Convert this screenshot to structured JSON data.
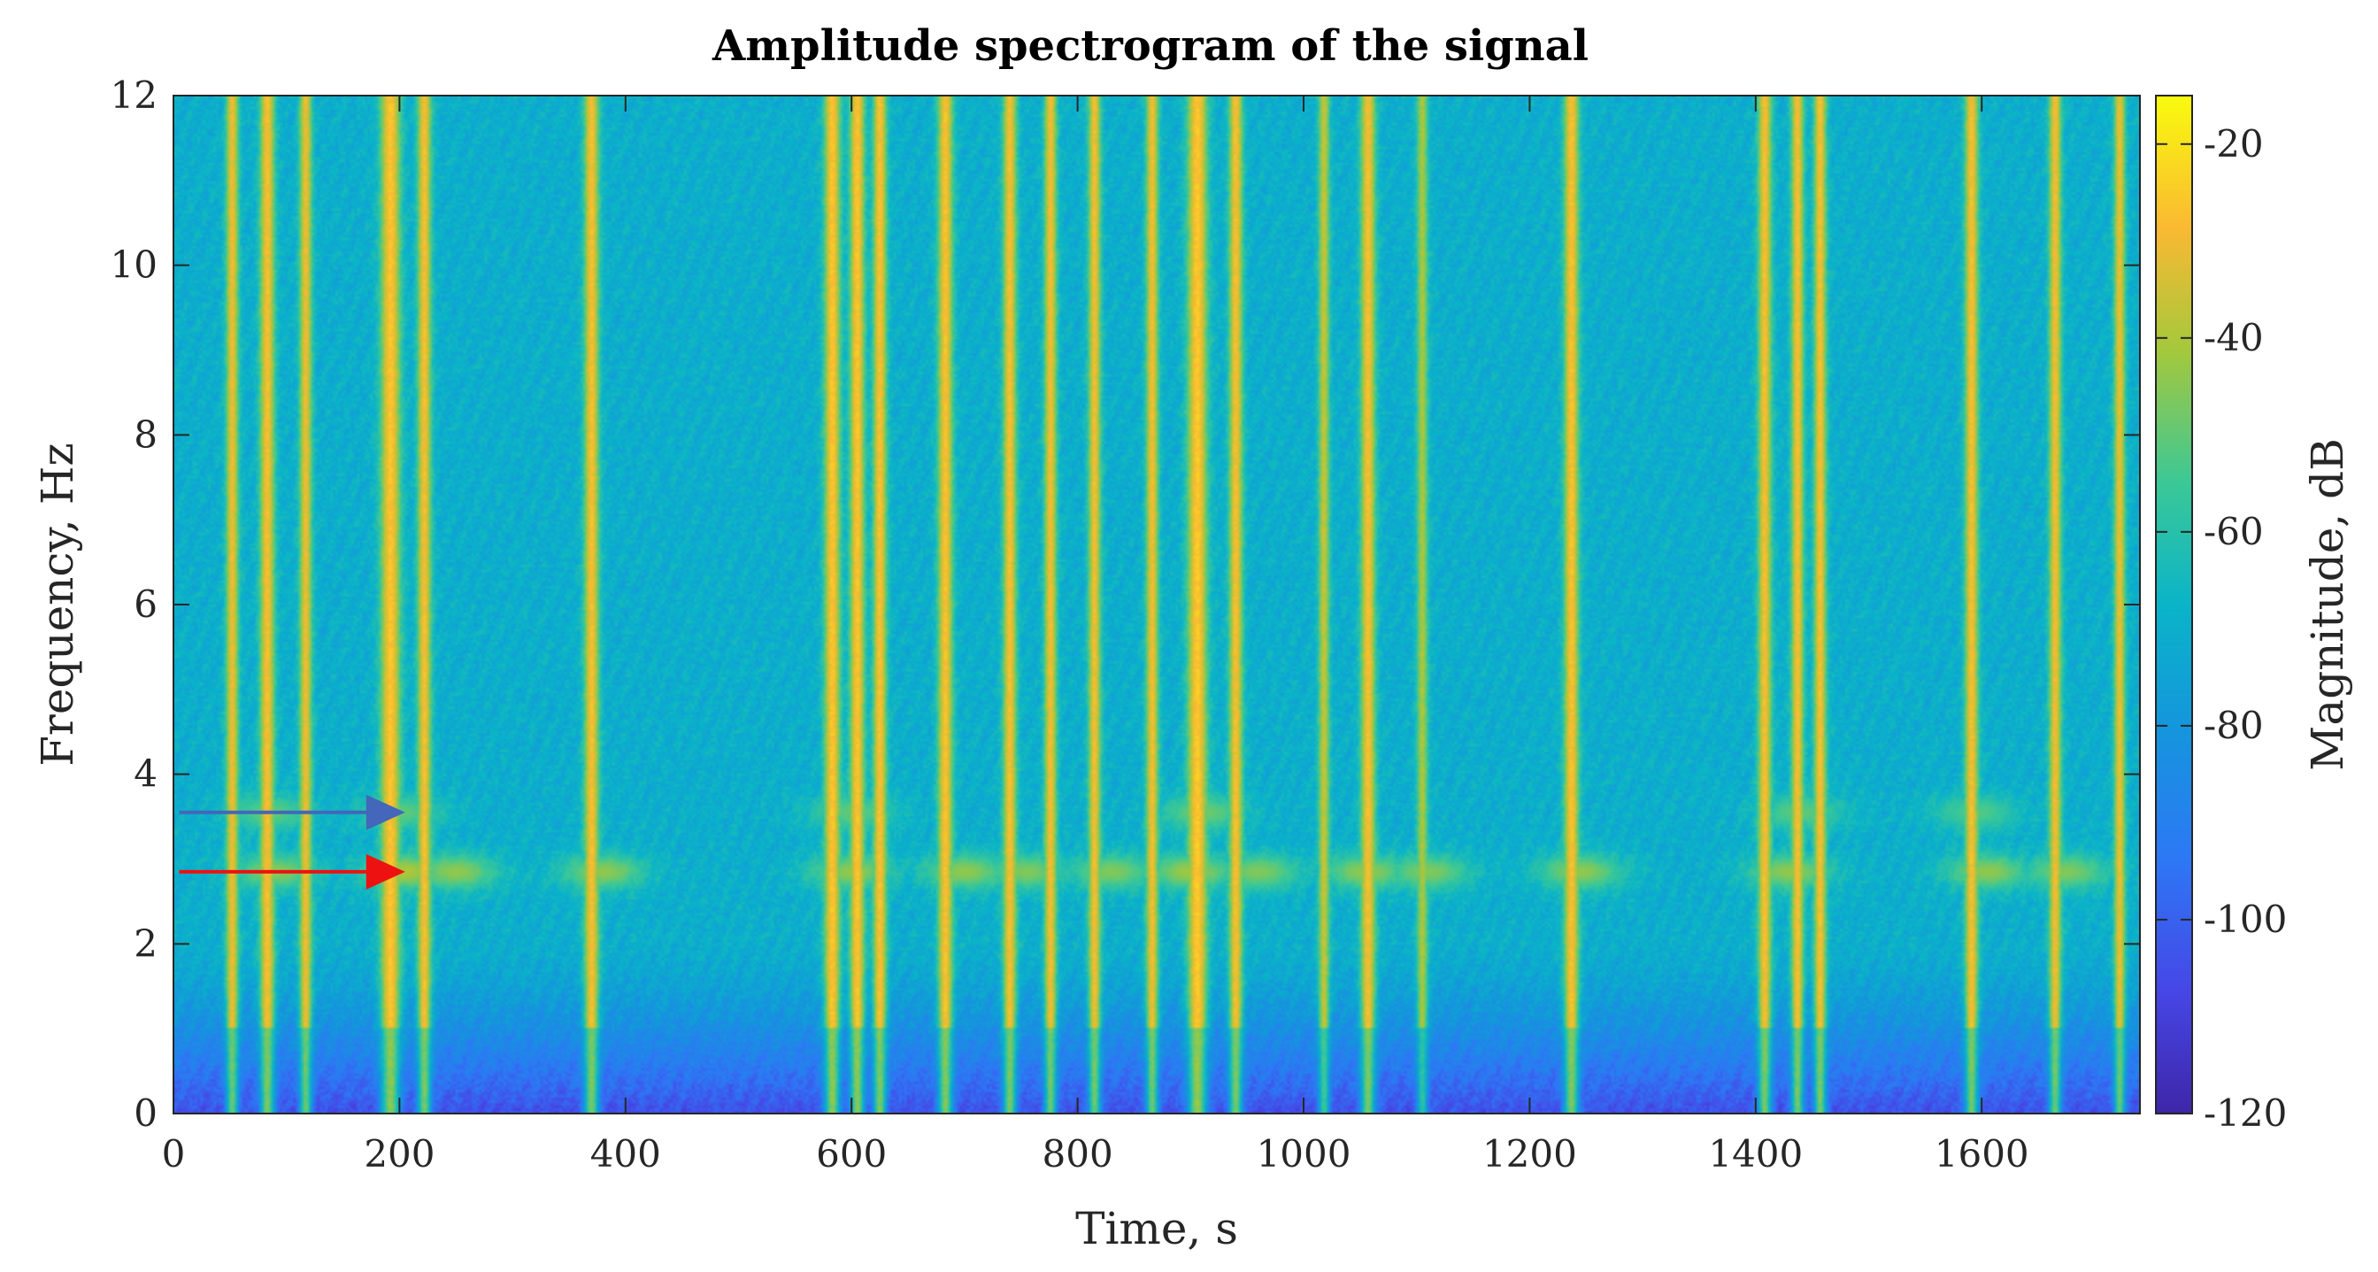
{
  "chart_data": {
    "type": "heatmap",
    "title": "Amplitude spectrogram of the signal",
    "xlabel": "Time, s",
    "ylabel": "Frequency, Hz",
    "colorbar_label": "Magnitude, dB",
    "colormap": "parula",
    "xlim": [
      0,
      1740
    ],
    "ylim": [
      0,
      12
    ],
    "clim": [
      -120,
      -15
    ],
    "x_ticks": [
      0,
      200,
      400,
      600,
      800,
      1000,
      1200,
      1400,
      1600
    ],
    "y_ticks": [
      0,
      2,
      4,
      6,
      8,
      10,
      12
    ],
    "colorbar_ticks": [
      -20,
      -40,
      -60,
      -80,
      -100,
      -120
    ],
    "background_level_db": -70,
    "low_frequency_level_db": -105,
    "low_frequency_band_hz": [
      0,
      2
    ],
    "vertical_events": [
      {
        "time_s": 52,
        "width_s": 10,
        "level_db": -30
      },
      {
        "time_s": 83,
        "width_s": 12,
        "level_db": -28
      },
      {
        "time_s": 117,
        "width_s": 10,
        "level_db": -30
      },
      {
        "time_s": 192,
        "width_s": 16,
        "level_db": -26
      },
      {
        "time_s": 222,
        "width_s": 11,
        "level_db": -28
      },
      {
        "time_s": 370,
        "width_s": 12,
        "level_db": -28
      },
      {
        "time_s": 583,
        "width_s": 13,
        "level_db": -26
      },
      {
        "time_s": 605,
        "width_s": 12,
        "level_db": -26
      },
      {
        "time_s": 625,
        "width_s": 11,
        "level_db": -27
      },
      {
        "time_s": 683,
        "width_s": 12,
        "level_db": -27
      },
      {
        "time_s": 740,
        "width_s": 11,
        "level_db": -28
      },
      {
        "time_s": 776,
        "width_s": 10,
        "level_db": -29
      },
      {
        "time_s": 815,
        "width_s": 10,
        "level_db": -29
      },
      {
        "time_s": 866,
        "width_s": 10,
        "level_db": -29
      },
      {
        "time_s": 906,
        "width_s": 16,
        "level_db": -25
      },
      {
        "time_s": 940,
        "width_s": 11,
        "level_db": -28
      },
      {
        "time_s": 1018,
        "width_s": 9,
        "level_db": -36
      },
      {
        "time_s": 1057,
        "width_s": 12,
        "level_db": -28
      },
      {
        "time_s": 1105,
        "width_s": 9,
        "level_db": -40
      },
      {
        "time_s": 1237,
        "width_s": 12,
        "level_db": -27
      },
      {
        "time_s": 1408,
        "width_s": 11,
        "level_db": -28
      },
      {
        "time_s": 1437,
        "width_s": 10,
        "level_db": -28
      },
      {
        "time_s": 1457,
        "width_s": 10,
        "level_db": -28
      },
      {
        "time_s": 1591,
        "width_s": 11,
        "level_db": -28
      },
      {
        "time_s": 1665,
        "width_s": 10,
        "level_db": -29
      },
      {
        "time_s": 1722,
        "width_s": 9,
        "level_db": -30
      }
    ],
    "harmonic_blobs": [
      {
        "time_s": 90,
        "freq_hz": 2.85,
        "level_db": -45
      },
      {
        "time_s": 205,
        "freq_hz": 2.85,
        "level_db": -40
      },
      {
        "time_s": 250,
        "freq_hz": 2.85,
        "level_db": -44
      },
      {
        "time_s": 380,
        "freq_hz": 2.85,
        "level_db": -44
      },
      {
        "time_s": 600,
        "freq_hz": 2.85,
        "level_db": -44
      },
      {
        "time_s": 700,
        "freq_hz": 2.85,
        "level_db": -44
      },
      {
        "time_s": 755,
        "freq_hz": 2.85,
        "level_db": -46
      },
      {
        "time_s": 830,
        "freq_hz": 2.85,
        "level_db": -46
      },
      {
        "time_s": 900,
        "freq_hz": 2.85,
        "level_db": -42
      },
      {
        "time_s": 960,
        "freq_hz": 2.85,
        "level_db": -46
      },
      {
        "time_s": 1055,
        "freq_hz": 2.85,
        "level_db": -44
      },
      {
        "time_s": 1110,
        "freq_hz": 2.85,
        "level_db": -46
      },
      {
        "time_s": 1245,
        "freq_hz": 2.85,
        "level_db": -44
      },
      {
        "time_s": 1430,
        "freq_hz": 2.85,
        "level_db": -44
      },
      {
        "time_s": 1605,
        "freq_hz": 2.85,
        "level_db": -44
      },
      {
        "time_s": 1675,
        "freq_hz": 2.85,
        "level_db": -46
      },
      {
        "time_s": 85,
        "freq_hz": 3.55,
        "level_db": -50
      },
      {
        "time_s": 200,
        "freq_hz": 3.55,
        "level_db": -50
      },
      {
        "time_s": 600,
        "freq_hz": 3.55,
        "level_db": -50
      },
      {
        "time_s": 910,
        "freq_hz": 3.55,
        "level_db": -48
      },
      {
        "time_s": 1440,
        "freq_hz": 3.55,
        "level_db": -50
      },
      {
        "time_s": 1595,
        "freq_hz": 3.55,
        "level_db": -52
      }
    ],
    "annotations": [
      {
        "type": "arrow",
        "color": "#4466bb",
        "x_from_s": 5,
        "x_to_s": 205,
        "freq_hz": 3.55
      },
      {
        "type": "arrow",
        "color": "#ee1111",
        "x_from_s": 5,
        "x_to_s": 205,
        "freq_hz": 2.85
      }
    ]
  }
}
